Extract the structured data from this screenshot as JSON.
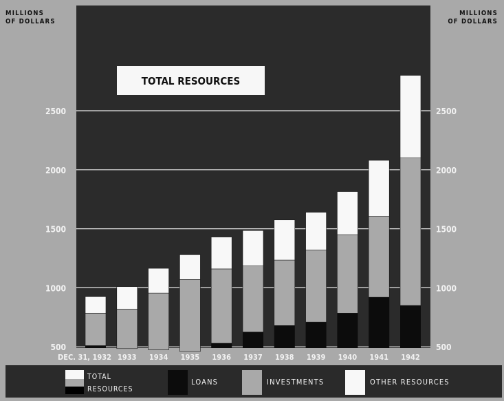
{
  "chart_data": {
    "type": "bar",
    "stacked": true,
    "title": "TOTAL RESOURCES",
    "ylabel_left": "MILLIONS OF DOLLARS",
    "ylabel_right": "MILLIONS OF DOLLARS",
    "y_ticks": [
      "2500",
      "2000",
      "1500",
      "1000",
      "500"
    ],
    "ylim": [
      0,
      2800
    ],
    "grid": true,
    "categories": [
      "DEC. 31, 1932",
      "1933",
      "1934",
      "1935",
      "1936",
      "1937",
      "1938",
      "1939",
      "1940",
      "1941",
      "1942"
    ],
    "series": [
      {
        "name": "LOANS",
        "color": "#0c0c0c",
        "values": [
          510,
          485,
          475,
          460,
          530,
          625,
          680,
          710,
          785,
          920,
          850
        ]
      },
      {
        "name": "INVESTMENTS",
        "color": "#a9a9a9",
        "values": [
          275,
          335,
          480,
          610,
          630,
          560,
          555,
          610,
          665,
          685,
          1250
        ]
      },
      {
        "name": "OTHER RESOURCES",
        "color": "#f8f8f8",
        "values": [
          140,
          190,
          210,
          210,
          270,
          300,
          340,
          320,
          365,
          475,
          700
        ]
      }
    ],
    "legend": {
      "position": "bottom",
      "total_label_line1": "TOTAL",
      "total_label_line2": "RESOURCES"
    }
  },
  "colors": {
    "plot_background": "#2b2b2b",
    "page_background": "#a9a9a9",
    "legend_background": "#2a2a2a",
    "text_light": "#f2f2f2",
    "text_dark": "#111111"
  }
}
